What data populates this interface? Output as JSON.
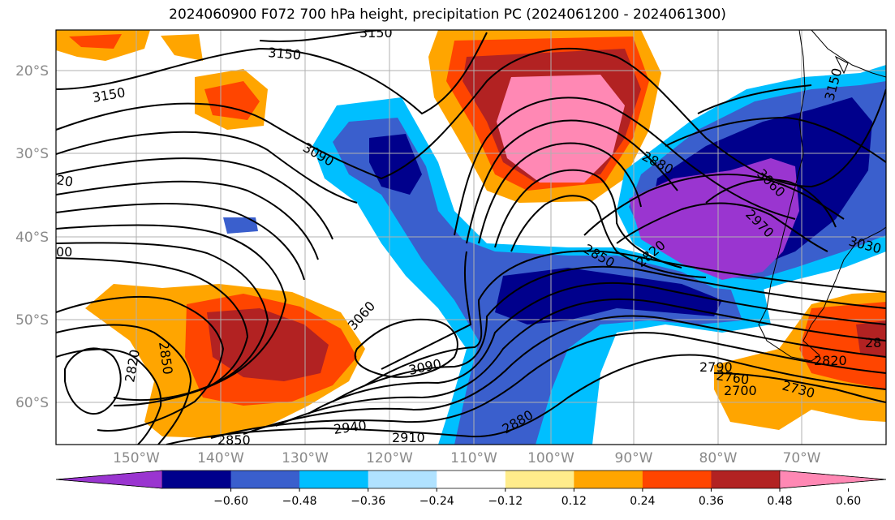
{
  "title": "2024060900 F072 700 hPa height, precipitation PC (2024061200 - 2024061300)",
  "map": {
    "lat_labels": [
      "20°S",
      "30°S",
      "40°S",
      "50°S",
      "60°S"
    ],
    "lon_labels": [
      "150°W",
      "140°W",
      "130°W",
      "120°W",
      "110°W",
      "100°W",
      "90°W",
      "80°W",
      "70°W"
    ],
    "grid": true,
    "contour_labels": [
      "3150",
      "3150",
      "3150",
      "3150",
      "3090",
      "20",
      "00",
      "3060",
      "3090",
      "2880",
      "3060",
      "2970",
      "3030",
      "2850",
      "2820",
      "2850",
      "2820",
      "2790",
      "2760",
      "2700",
      "2730",
      "2820",
      "28",
      "2880",
      "2940",
      "2910",
      "2850"
    ]
  },
  "colorbar": {
    "ticks": [
      "−0.60",
      "−0.48",
      "−0.36",
      "−0.24",
      "−0.12",
      "0.12",
      "0.24",
      "0.36",
      "0.48",
      "0.60"
    ],
    "colors": [
      "#9a35d0",
      "#00008c",
      "#3a5fcd",
      "#00bfff",
      "#b0e2ff",
      "#ffffff",
      "#ffec8b",
      "#ffa500",
      "#ff4500",
      "#b22222",
      "#ff88b4"
    ],
    "extend": "both"
  }
}
